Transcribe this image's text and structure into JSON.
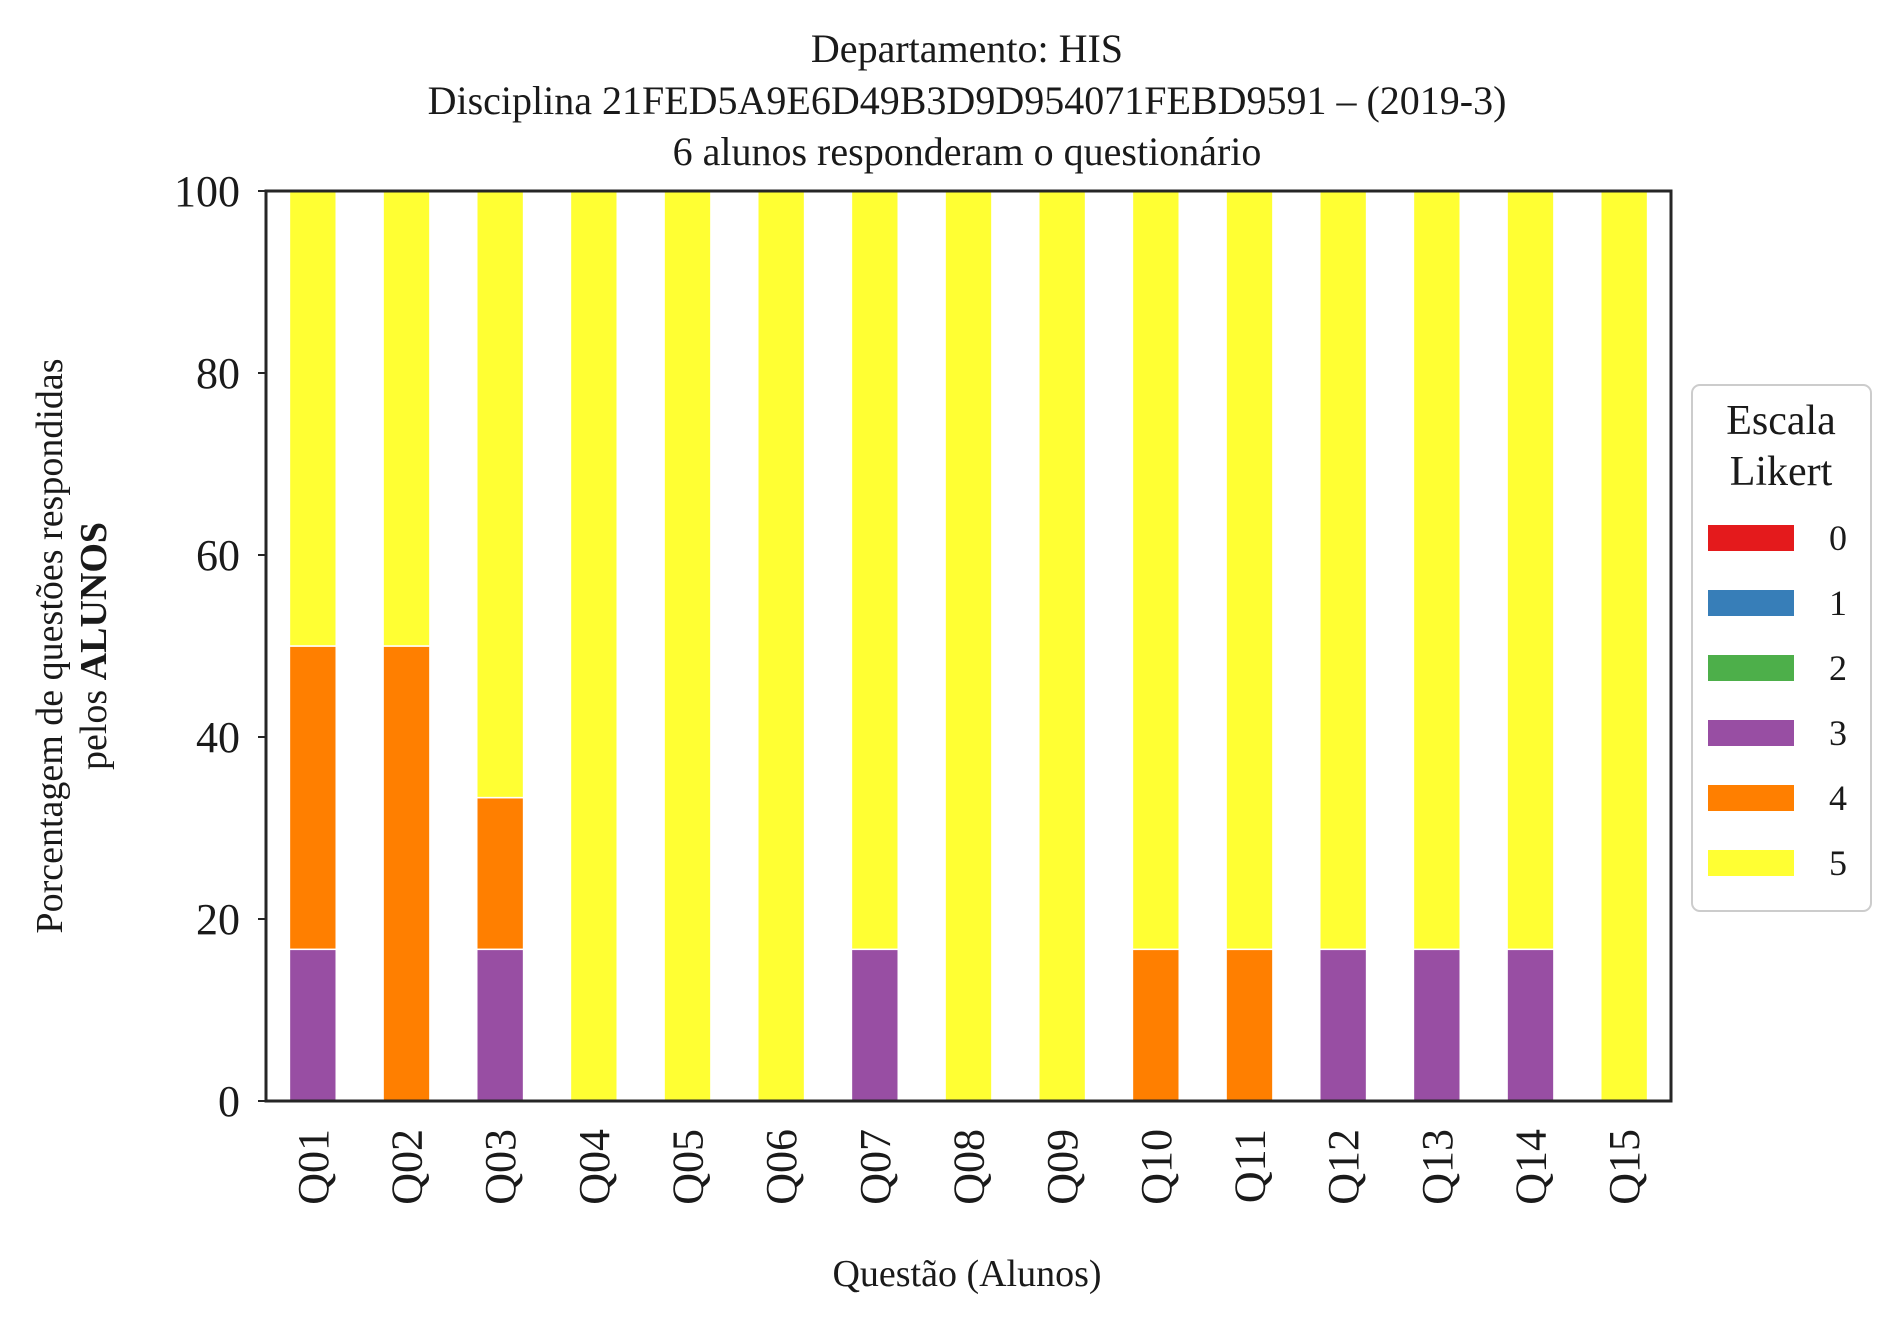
{
  "chart_data": {
    "type": "bar",
    "stacked": true,
    "title_lines": [
      "Departamento: HIS",
      "Disciplina 21FED5A9E6D49B3D9D954071FEBD9591 – (2019-3)",
      "6 alunos responderam o questionário"
    ],
    "ylabel_line1": "Porcentagem de questões respondidas",
    "ylabel_line2_prefix": "pelos ",
    "ylabel_line2_bold": "ALUNOS",
    "xlabel": "Questão (Alunos)",
    "ylim": [
      0,
      100
    ],
    "yticks": [
      "0",
      "20",
      "40",
      "60",
      "80",
      "100"
    ],
    "grid": false,
    "categories": [
      "Q01",
      "Q02",
      "Q03",
      "Q04",
      "Q05",
      "Q06",
      "Q07",
      "Q08",
      "Q09",
      "Q10",
      "Q11",
      "Q12",
      "Q13",
      "Q14",
      "Q15"
    ],
    "series": [
      {
        "name": "0",
        "color": "#e41a1c",
        "values": [
          0,
          0,
          0,
          0,
          0,
          0,
          0,
          0,
          0,
          0,
          0,
          0,
          0,
          0,
          0
        ]
      },
      {
        "name": "1",
        "color": "#377eb8",
        "values": [
          0,
          0,
          0,
          0,
          0,
          0,
          0,
          0,
          0,
          0,
          0,
          0,
          0,
          0,
          0
        ]
      },
      {
        "name": "2",
        "color": "#4daf4a",
        "values": [
          0,
          0,
          0,
          0,
          0,
          0,
          0,
          0,
          0,
          0,
          0,
          0,
          0,
          0,
          0
        ]
      },
      {
        "name": "3",
        "color": "#984ea3",
        "values": [
          16.67,
          0,
          16.67,
          0,
          0,
          0,
          16.67,
          0,
          0,
          0,
          0,
          16.67,
          16.67,
          16.67,
          0
        ]
      },
      {
        "name": "4",
        "color": "#ff7f00",
        "values": [
          33.33,
          50,
          16.67,
          0,
          0,
          0,
          0,
          0,
          0,
          16.67,
          16.67,
          0,
          0,
          0,
          0
        ]
      },
      {
        "name": "5",
        "color": "#ffff33",
        "values": [
          50,
          50,
          66.67,
          100,
          100,
          100,
          83.33,
          100,
          100,
          83.33,
          83.33,
          83.33,
          83.33,
          83.33,
          100
        ]
      }
    ],
    "legend": {
      "title_lines": [
        "Escala",
        "Likert"
      ],
      "placement": "right"
    }
  }
}
